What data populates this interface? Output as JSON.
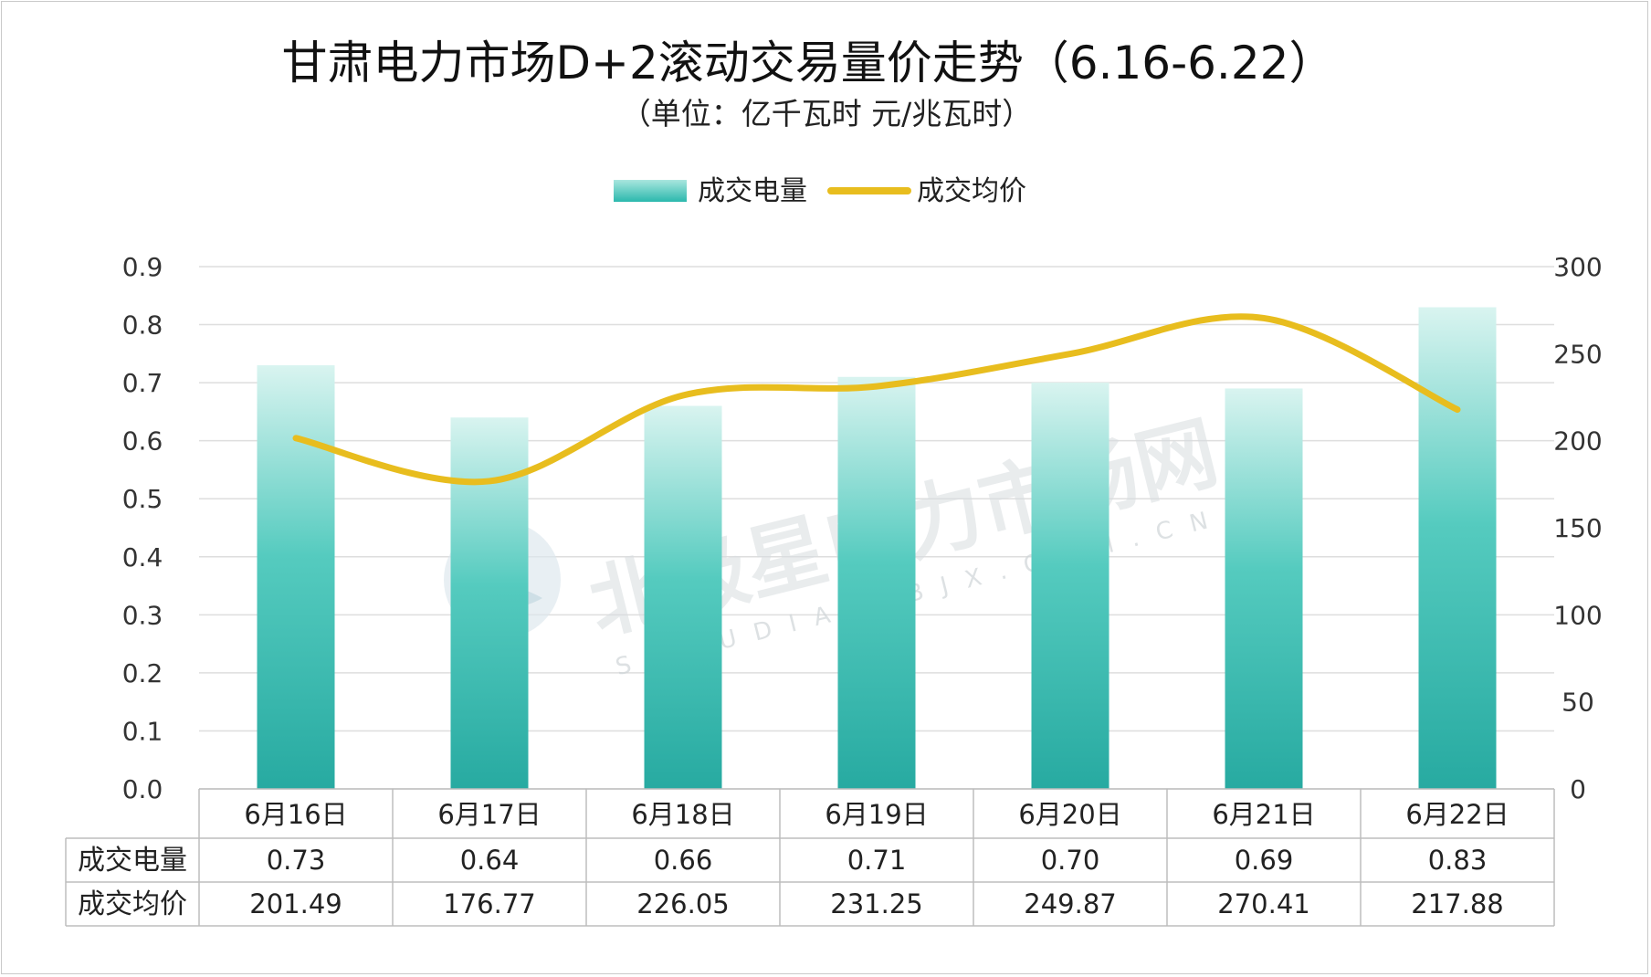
{
  "chart_data": {
    "type": "bar+line",
    "title": "甘肃电力市场D+2滚动交易量价走势（6.16-6.22）",
    "subtitle": "（单位：亿千瓦时 元/兆瓦时）",
    "categories": [
      "6月16日",
      "6月17日",
      "6月18日",
      "6月19日",
      "6月20日",
      "6月21日",
      "6月22日"
    ],
    "series": [
      {
        "name": "成交电量",
        "type": "bar",
        "axis": "left",
        "values": [
          0.73,
          0.64,
          0.66,
          0.71,
          0.7,
          0.69,
          0.83
        ],
        "value_labels": [
          "0.73",
          "0.64",
          "0.66",
          "0.71",
          "0.70",
          "0.69",
          "0.83"
        ],
        "color": "#2bb8ad"
      },
      {
        "name": "成交均价",
        "type": "line",
        "axis": "right",
        "values": [
          201.49,
          176.77,
          226.05,
          231.25,
          249.87,
          270.41,
          217.88
        ],
        "value_labels": [
          "201.49",
          "176.77",
          "226.05",
          "231.25",
          "249.87",
          "270.41",
          "217.88"
        ],
        "color": "#e8bd1e"
      }
    ],
    "y_left": {
      "min": 0,
      "max": 0.9,
      "ticks": [
        "0.0",
        "0.1",
        "0.2",
        "0.3",
        "0.4",
        "0.5",
        "0.6",
        "0.7",
        "0.8",
        "0.9"
      ]
    },
    "y_right": {
      "min": 0,
      "max": 300,
      "ticks": [
        "0",
        "50",
        "100",
        "150",
        "200",
        "250",
        "300"
      ]
    },
    "grid": true,
    "legend_position": "top-center",
    "data_table": true
  },
  "watermark": {
    "text": "北极星电力市场网",
    "subtext": "SHOUDIAN.BJX.COM.CN"
  }
}
